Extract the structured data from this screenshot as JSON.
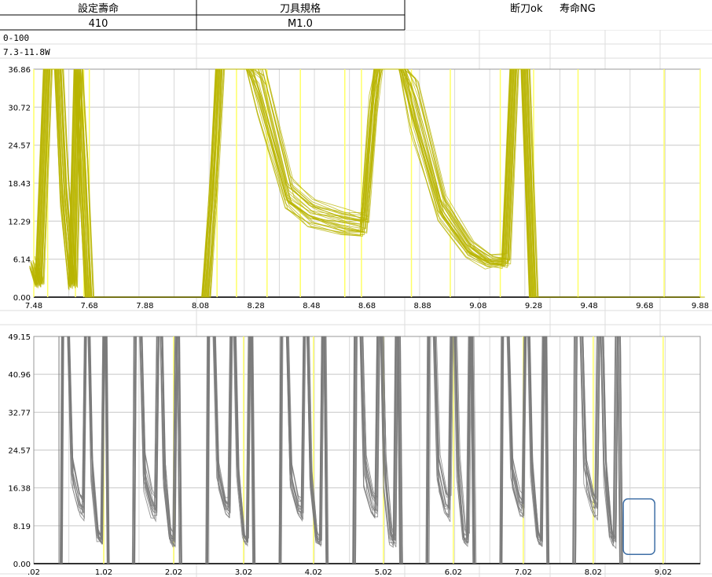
{
  "header": {
    "col1": {
      "label": "設定壽命",
      "value": "410"
    },
    "col2": {
      "label": "刀具規格",
      "value": "M1.0"
    },
    "status1": "断刀ok",
    "status2": "寿命NG"
  },
  "notes": {
    "range": "0-100",
    "power": "7.3-11.8W"
  },
  "colors": {
    "top_series": "#b8b400",
    "bottom_series": "#7a7a7a",
    "marker": "#ffff66",
    "grid": "#c8c8c8",
    "highlight_box": "#3f6fa6"
  },
  "chart_data": [
    {
      "type": "line",
      "x_ticks": [
        "7.48",
        "7.68",
        "7.88",
        "8.08",
        "8.28",
        "8.48",
        "8.68",
        "8.88",
        "9.08",
        "9.28",
        "9.48",
        "9.68",
        "9.88"
      ],
      "y_ticks": [
        "0.00",
        "6.14",
        "12.29",
        "18.43",
        "24.57",
        "30.72",
        "36.86"
      ],
      "xlim": [
        7.48,
        9.88
      ],
      "ylim": [
        0,
        36.86
      ],
      "grid": true,
      "marker_lines_x": [
        7.48,
        7.53,
        7.63,
        7.66,
        7.68,
        8.14,
        8.21,
        8.32,
        8.44,
        8.6,
        8.66,
        8.84,
        8.98,
        9.16,
        9.28,
        9.44,
        9.75,
        9.88
      ],
      "series_color": "#b8b400",
      "trace_bundle": {
        "count": 30,
        "points": [
          [
            7.48,
            5.5
          ],
          [
            7.5,
            2
          ],
          [
            7.53,
            36.86
          ],
          [
            7.57,
            36.86
          ],
          [
            7.59,
            18
          ],
          [
            7.62,
            2
          ],
          [
            7.64,
            36.86
          ],
          [
            7.66,
            20
          ],
          [
            7.68,
            0
          ],
          [
            8.1,
            0
          ],
          [
            8.13,
            20
          ],
          [
            8.15,
            36.86
          ],
          [
            8.26,
            36.86
          ],
          [
            8.3,
            35
          ],
          [
            8.4,
            17
          ],
          [
            8.48,
            14
          ],
          [
            8.6,
            12.5
          ],
          [
            8.67,
            12
          ],
          [
            8.7,
            30
          ],
          [
            8.72,
            36.86
          ],
          [
            8.81,
            36.86
          ],
          [
            8.85,
            32
          ],
          [
            8.95,
            15
          ],
          [
            9.05,
            8
          ],
          [
            9.12,
            6
          ],
          [
            9.18,
            6
          ],
          [
            9.21,
            36.86
          ],
          [
            9.25,
            36.86
          ],
          [
            9.28,
            0
          ],
          [
            9.88,
            0
          ]
        ]
      }
    },
    {
      "type": "line",
      "x_ticks": [
        ".02",
        "1.02",
        "2.02",
        "3.02",
        "4.02",
        "5.02",
        "6.02",
        "7.02",
        "8.02",
        "9.02"
      ],
      "y_ticks": [
        "0.00",
        "8.19",
        "16.38",
        "24.57",
        "32.77",
        "40.96",
        "49.15"
      ],
      "xlim": [
        0.02,
        9.55
      ],
      "ylim": [
        0,
        49.15
      ],
      "grid": true,
      "marker_lines_x": [
        1.02,
        2.02,
        3.02,
        4.02,
        5.02,
        6.02,
        7.02,
        8.02,
        9.02
      ],
      "series_color": "#7a7a7a",
      "cycle_starts": [
        0.42,
        1.45,
        2.5,
        3.55,
        4.6,
        5.65,
        6.7,
        7.75
      ],
      "cycle_length": 1.05,
      "cycle_shape": [
        [
          0.0,
          0
        ],
        [
          0.02,
          49.15
        ],
        [
          0.1,
          49.15
        ],
        [
          0.15,
          20
        ],
        [
          0.25,
          13
        ],
        [
          0.3,
          12
        ],
        [
          0.33,
          49.15
        ],
        [
          0.38,
          49.15
        ],
        [
          0.42,
          20
        ],
        [
          0.5,
          6
        ],
        [
          0.55,
          5
        ],
        [
          0.58,
          49.15
        ],
        [
          0.61,
          49.15
        ],
        [
          0.64,
          0
        ]
      ],
      "highlight_box": {
        "x_from": 8.45,
        "x_to": 8.9,
        "y_from": 2,
        "y_to": 14
      }
    }
  ]
}
